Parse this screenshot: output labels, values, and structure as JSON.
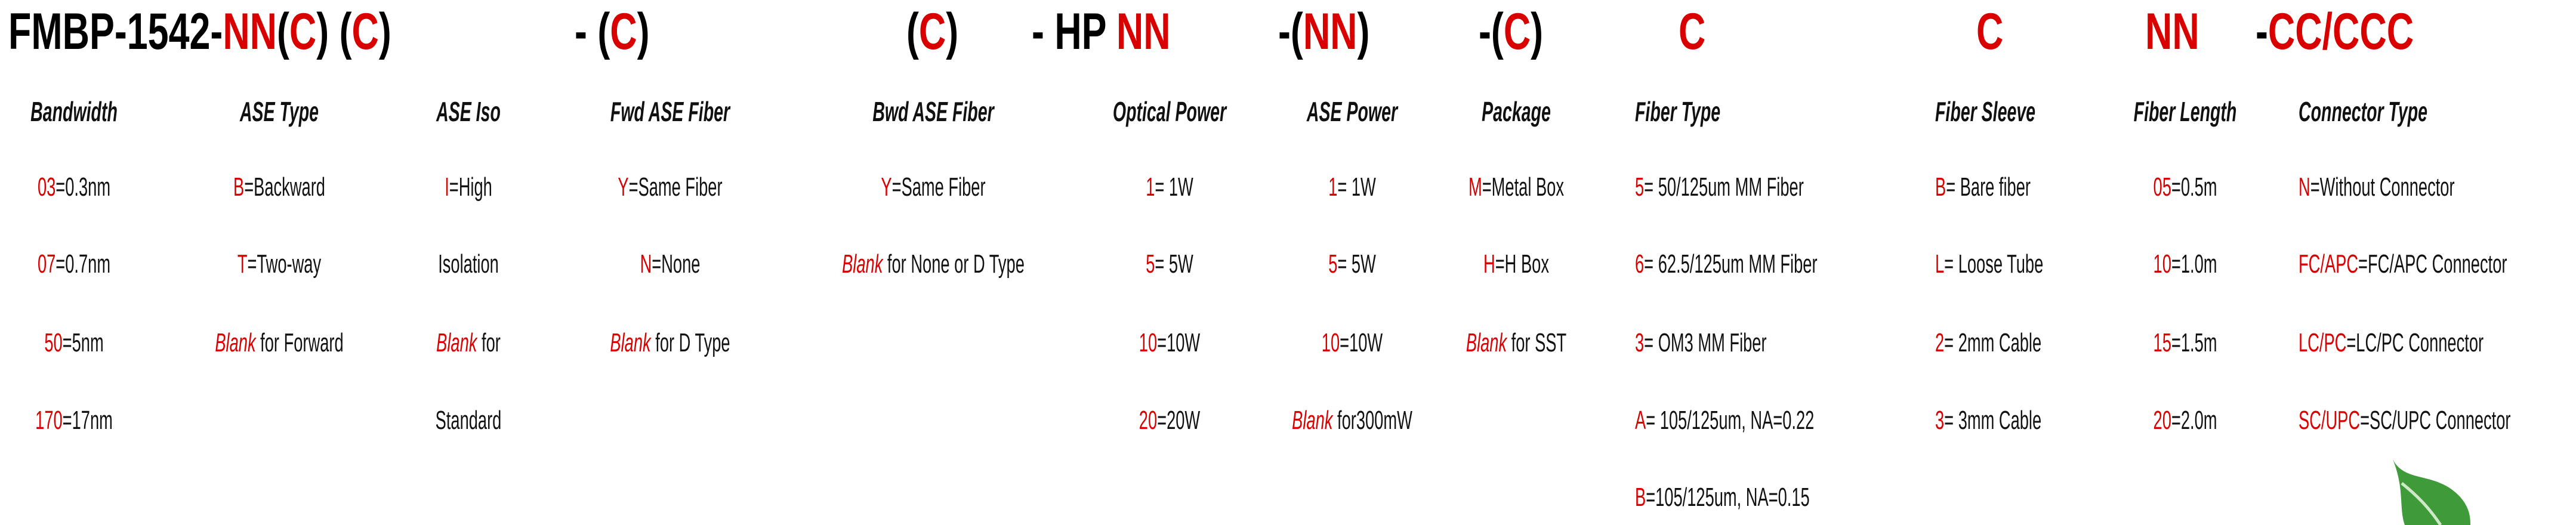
{
  "title_segments": [
    {
      "parts": [
        {
          "t": "FMBP-1542-",
          "c": "black"
        },
        {
          "t": "NN",
          "c": "red"
        },
        {
          "t": "(",
          "c": "black"
        },
        {
          "t": "C",
          "c": "red"
        },
        {
          "t": ") (",
          "c": "black"
        },
        {
          "t": "C",
          "c": "red"
        },
        {
          "t": ")",
          "c": "black"
        }
      ]
    },
    {
      "parts": [
        {
          "t": "- (",
          "c": "black"
        },
        {
          "t": "C",
          "c": "red"
        },
        {
          "t": ")",
          "c": "black"
        }
      ]
    },
    {
      "parts": [
        {
          "t": "(",
          "c": "black"
        },
        {
          "t": "C",
          "c": "red"
        },
        {
          "t": ")",
          "c": "black"
        }
      ]
    },
    {
      "parts": [
        {
          "t": "- HP ",
          "c": "black"
        },
        {
          "t": "NN",
          "c": "red"
        }
      ]
    },
    {
      "parts": [
        {
          "t": "-(",
          "c": "black"
        },
        {
          "t": "NN",
          "c": "red"
        },
        {
          "t": ")",
          "c": "black"
        }
      ]
    },
    {
      "parts": [
        {
          "t": "-(",
          "c": "black"
        },
        {
          "t": "C",
          "c": "red"
        },
        {
          "t": ")",
          "c": "black"
        }
      ]
    },
    {
      "parts": [
        {
          "t": "C",
          "c": "red"
        }
      ]
    },
    {
      "parts": [
        {
          "t": "C",
          "c": "red"
        }
      ]
    },
    {
      "parts": [
        {
          "t": "NN",
          "c": "red"
        }
      ]
    },
    {
      "parts": [
        {
          "t": "-",
          "c": "black"
        },
        {
          "t": "CC/CCC",
          "c": "red"
        }
      ]
    }
  ],
  "columns": [
    {
      "header": "Bandwidth",
      "items": [
        {
          "code": "03",
          "text": "=0.3nm"
        },
        {
          "code": "07",
          "text": "=0.7nm"
        },
        {
          "code": "50",
          "text": "=5nm"
        },
        {
          "code": "170",
          "text": "=17nm"
        }
      ]
    },
    {
      "header": "ASE Type",
      "items": [
        {
          "code": "B",
          "text": "=Backward"
        },
        {
          "code": "T",
          "text": "=Two-way"
        },
        {
          "code": "Blank",
          "blank": true,
          "text": " for Forward"
        }
      ]
    },
    {
      "header": "ASE Iso",
      "items": [
        {
          "code": "I",
          "text": "=High"
        },
        {
          "code": "",
          "text": "Isolation"
        },
        {
          "code": "Blank",
          "blank": true,
          "text": " for"
        },
        {
          "code": "",
          "text": "Standard"
        }
      ]
    },
    {
      "header": "Fwd ASE Fiber",
      "items": [
        {
          "code": "Y",
          "text": "=Same Fiber"
        },
        {
          "code": "N",
          "text": "=None"
        },
        {
          "code": "Blank",
          "blank": true,
          "text": " for D Type"
        }
      ]
    },
    {
      "header": "Bwd ASE Fiber",
      "items": [
        {
          "code": "Y",
          "text": "=Same Fiber"
        },
        {
          "code": "Blank",
          "blank": true,
          "text": " for None or D Type"
        }
      ]
    },
    {
      "header": "Optical Power",
      "items": [
        {
          "code": "1",
          "text": "= 1W"
        },
        {
          "code": "5",
          "text": "= 5W"
        },
        {
          "code": "10",
          "text": "=10W"
        },
        {
          "code": "20",
          "text": "=20W"
        }
      ]
    },
    {
      "header": "ASE Power",
      "items": [
        {
          "code": "1",
          "text": "= 1W"
        },
        {
          "code": "5",
          "text": "= 5W"
        },
        {
          "code": "10",
          "text": "=10W"
        },
        {
          "code": "Blank",
          "blank": true,
          "text": " for300mW"
        }
      ]
    },
    {
      "header": "Package",
      "items": [
        {
          "code": "M",
          "text": "=Metal Box"
        },
        {
          "code": "H",
          "text": "=H Box"
        },
        {
          "code": "Blank",
          "blank": true,
          "text": " for SST"
        }
      ]
    },
    {
      "header": "Fiber Type",
      "items": [
        {
          "code": "5",
          "text": "= 50/125um MM Fiber"
        },
        {
          "code": "6",
          "text": "= 62.5/125um MM Fiber"
        },
        {
          "code": "3",
          "text": "= OM3 MM Fiber"
        },
        {
          "code": "A",
          "text": "= 105/125um, NA=0.22"
        },
        {
          "code": "B",
          "text": "=105/125um, NA=0.15"
        }
      ]
    },
    {
      "header": "Fiber Sleeve",
      "items": [
        {
          "code": "B",
          "text": "= Bare fiber"
        },
        {
          "code": "L",
          "text": "= Loose Tube"
        },
        {
          "code": "2",
          "text": "= 2mm Cable"
        },
        {
          "code": "3",
          "text": "= 3mm Cable"
        }
      ]
    },
    {
      "header": "Fiber Length",
      "items": [
        {
          "code": "05",
          "text": "=0.5m"
        },
        {
          "code": "10",
          "text": "=1.0m"
        },
        {
          "code": "15",
          "text": "=1.5m"
        },
        {
          "code": "20",
          "text": "=2.0m"
        }
      ]
    },
    {
      "header": "Connector Type",
      "items": [
        {
          "code": "N",
          "text": "=Without Connector"
        },
        {
          "code": "FC/APC",
          "text": "=FC/APC Connector"
        },
        {
          "code": "LC/PC",
          "text": "=LC/PC Connector"
        },
        {
          "code": "SC/UPC",
          "text": "=SC/UPC Connector"
        }
      ]
    }
  ],
  "colors": {
    "accent": "#d90000",
    "text": "#000000",
    "leaf": "#3f9a3a"
  },
  "decoration": {
    "icon": "leaf-icon"
  }
}
